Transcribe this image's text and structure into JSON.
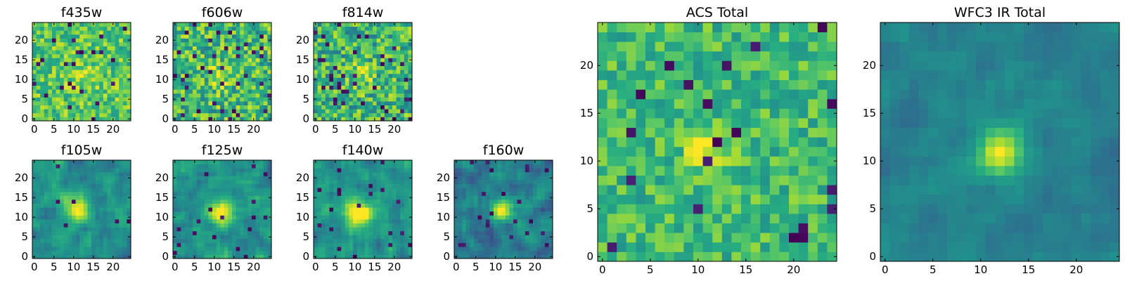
{
  "figure": {
    "description": "Cutout images of a source in several HST filters plus stacked totals",
    "colormap": "viridis",
    "colors": {
      "low": "#440154",
      "mid": "#21918c",
      "high": "#fde725",
      "frame": "#000000"
    }
  },
  "chart_data": [
    {
      "type": "heatmap",
      "name": "f435w",
      "title": "f435w",
      "grid_size": 25,
      "xlim": [
        -0.5,
        24.5
      ],
      "ylim": [
        -0.5,
        24.5
      ],
      "xticks": [
        0,
        5,
        10,
        15,
        20
      ],
      "yticks": [
        0,
        5,
        10,
        15,
        20
      ],
      "source_center": [
        12,
        11
      ],
      "source_sigma": 3.0,
      "source_amplitude": 0.12,
      "background_mean": 0.74,
      "noise_level": 0.2,
      "dark_pixel_fraction": 0.04,
      "smoothing": 0,
      "seed": 11
    },
    {
      "type": "heatmap",
      "name": "f606w",
      "title": "f606w",
      "grid_size": 25,
      "xlim": [
        -0.5,
        24.5
      ],
      "ylim": [
        -0.5,
        24.5
      ],
      "xticks": [
        0,
        5,
        10,
        15,
        20
      ],
      "yticks": [
        0,
        5,
        10,
        15,
        20
      ],
      "source_center": [
        12,
        11
      ],
      "source_sigma": 2.0,
      "source_amplitude": 0.25,
      "background_mean": 0.68,
      "noise_level": 0.26,
      "dark_pixel_fraction": 0.06,
      "smoothing": 0,
      "seed": 23
    },
    {
      "type": "heatmap",
      "name": "f814w",
      "title": "f814w",
      "grid_size": 25,
      "xlim": [
        -0.5,
        24.5
      ],
      "ylim": [
        -0.5,
        24.5
      ],
      "xticks": [
        0,
        5,
        10,
        15,
        20
      ],
      "yticks": [
        0,
        5,
        10,
        15,
        20
      ],
      "source_center": [
        12,
        11
      ],
      "source_sigma": 2.0,
      "source_amplitude": 0.25,
      "background_mean": 0.66,
      "noise_level": 0.26,
      "dark_pixel_fraction": 0.06,
      "smoothing": 0,
      "seed": 37
    },
    {
      "type": "heatmap",
      "name": "f105w",
      "title": "f105w",
      "grid_size": 25,
      "xlim": [
        -0.5,
        24.5
      ],
      "ylim": [
        -0.5,
        24.5
      ],
      "xticks": [
        0,
        5,
        10,
        15,
        20
      ],
      "yticks": [
        0,
        5,
        10,
        15,
        20
      ],
      "source_center": [
        11,
        12
      ],
      "source_sigma": 2.2,
      "source_amplitude": 0.55,
      "background_mean": 0.5,
      "noise_level": 0.16,
      "dark_pixel_fraction": 0.02,
      "smoothing": 1,
      "seed": 41
    },
    {
      "type": "heatmap",
      "name": "f125w",
      "title": "f125w",
      "grid_size": 25,
      "xlim": [
        -0.5,
        24.5
      ],
      "ylim": [
        -0.5,
        24.5
      ],
      "xticks": [
        0,
        5,
        10,
        15,
        20
      ],
      "yticks": [
        0,
        5,
        10,
        15,
        20
      ],
      "source_center": [
        12,
        11
      ],
      "source_sigma": 2.2,
      "source_amplitude": 0.5,
      "background_mean": 0.52,
      "noise_level": 0.16,
      "dark_pixel_fraction": 0.02,
      "smoothing": 1,
      "seed": 53
    },
    {
      "type": "heatmap",
      "name": "f140w",
      "title": "f140w",
      "grid_size": 25,
      "xlim": [
        -0.5,
        24.5
      ],
      "ylim": [
        -0.5,
        24.5
      ],
      "xticks": [
        0,
        5,
        10,
        15,
        20
      ],
      "yticks": [
        0,
        5,
        10,
        15,
        20
      ],
      "source_center": [
        11,
        11
      ],
      "source_sigma": 2.4,
      "source_amplitude": 0.55,
      "background_mean": 0.52,
      "noise_level": 0.16,
      "dark_pixel_fraction": 0.02,
      "smoothing": 1,
      "seed": 67
    },
    {
      "type": "heatmap",
      "name": "f160w",
      "title": "f160w",
      "grid_size": 25,
      "xlim": [
        -0.5,
        24.5
      ],
      "ylim": [
        -0.5,
        24.5
      ],
      "xticks": [
        0,
        5,
        10,
        15,
        20
      ],
      "yticks": [
        0,
        5,
        10,
        15,
        20
      ],
      "source_center": [
        12,
        12
      ],
      "source_sigma": 2.0,
      "source_amplitude": 0.6,
      "background_mean": 0.42,
      "noise_level": 0.17,
      "dark_pixel_fraction": 0.03,
      "smoothing": 1,
      "seed": 79
    },
    {
      "type": "heatmap",
      "name": "acs-total",
      "title": "ACS Total",
      "grid_size": 25,
      "xlim": [
        -0.5,
        24.5
      ],
      "ylim": [
        -0.5,
        24.5
      ],
      "xticks": [
        0,
        5,
        10,
        15,
        20
      ],
      "yticks": [
        0,
        5,
        10,
        15,
        20
      ],
      "source_center": [
        11,
        11
      ],
      "source_sigma": 1.6,
      "source_amplitude": 0.3,
      "background_mean": 0.68,
      "noise_level": 0.17,
      "dark_pixel_fraction": 0.03,
      "smoothing": 0,
      "seed": 97
    },
    {
      "type": "heatmap",
      "name": "wfc3-ir-total",
      "title": "WFC3 IR Total",
      "grid_size": 25,
      "xlim": [
        -0.5,
        24.5
      ],
      "ylim": [
        -0.5,
        24.5
      ],
      "xticks": [
        0,
        5,
        10,
        15,
        20
      ],
      "yticks": [
        0,
        5,
        10,
        15,
        20
      ],
      "source_center": [
        12,
        11
      ],
      "source_sigma": 1.8,
      "source_amplitude": 0.55,
      "background_mean": 0.44,
      "noise_level": 0.08,
      "dark_pixel_fraction": 0.0,
      "smoothing": 1,
      "seed": 113
    }
  ]
}
